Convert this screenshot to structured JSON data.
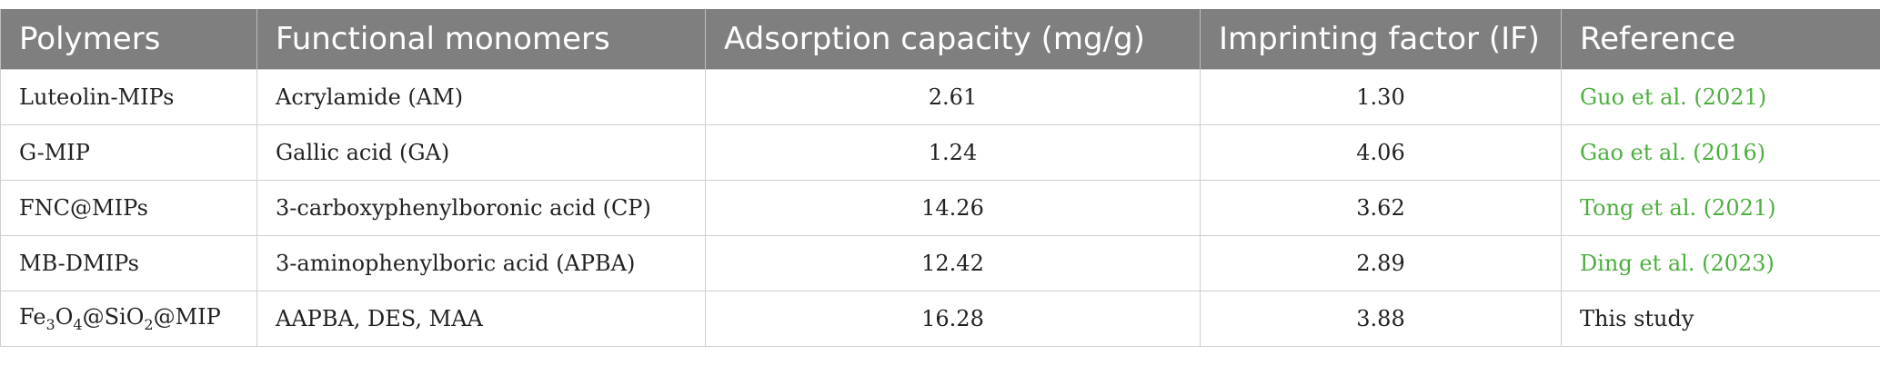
{
  "headers": [
    "Polymers",
    "Functional monomers",
    "Adsorption capacity (mg/g)",
    "Imprinting factor (IF)",
    "Reference"
  ],
  "rows": [
    {
      "polymer": "Luteolin-MIPs",
      "monomers": "Acrylamide (AM)",
      "capacity": "2.61",
      "if": "1.30",
      "reference": "Guo et al. (2021)"
    },
    {
      "polymer": "G-MIP",
      "monomers": "Gallic acid (GA)",
      "capacity": "1.24",
      "if": "4.06",
      "reference": "Gao et al. (2016)"
    },
    {
      "polymer": "FNC@MIPs",
      "monomers": "3-carboxyphenylboronic acid (CP)",
      "capacity": "14.26",
      "if": "3.62",
      "reference": "Tong et al. (2021)"
    },
    {
      "polymer": "MB-DMIPs",
      "monomers": "3-aminophenylboric acid (APBA)",
      "capacity": "12.42",
      "if": "2.89",
      "reference": "Ding et al. (2023)"
    },
    {
      "polymer_parts": [
        "Fe",
        "3",
        "O",
        "4",
        "@SiO",
        "2",
        "@MIP"
      ],
      "monomers": "AAPBA, DES, MAA",
      "capacity": "16.28",
      "if": "3.88",
      "reference": "This study"
    }
  ],
  "colors": {
    "header_bg": "#7f7f7f",
    "link": "#4caf3e"
  }
}
